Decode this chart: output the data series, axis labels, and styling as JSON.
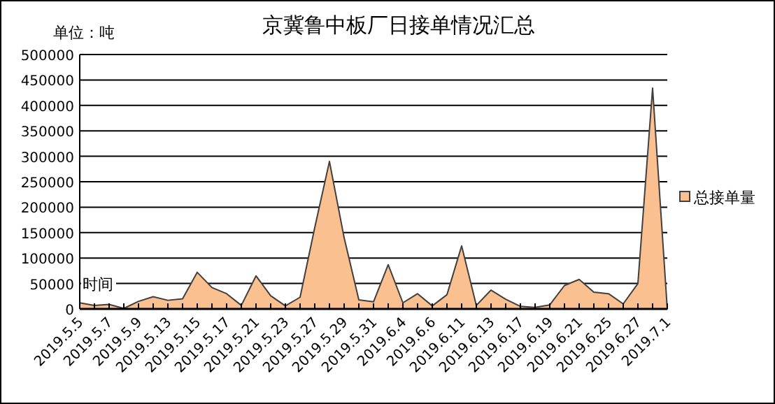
{
  "chart_data": {
    "type": "area",
    "title": "京冀鲁中板厂日接单情况汇总",
    "ylabel": "单位：吨",
    "xlabel": "时间",
    "categories": [
      "2019.5.5",
      null,
      "2019.5.7",
      null,
      "2019.5.9",
      null,
      "2019.5.13",
      null,
      "2019.5.15",
      null,
      "2019.5.17",
      null,
      "2019.5.21",
      null,
      "2019.5.23",
      null,
      "2019.5.27",
      null,
      "2019.5.29",
      null,
      "2019.5.31",
      null,
      "2019.6.4",
      null,
      "2019.6.6",
      null,
      "2019.6.11",
      null,
      "2019.6.13",
      null,
      "2019.6.17",
      null,
      "2019.6.19",
      null,
      "2019.6.21",
      null,
      "2019.6.25",
      null,
      "2019.6.27",
      null,
      "2019.7.1"
    ],
    "series": [
      {
        "name": "总接单量",
        "color": "#fac090",
        "values": [
          12000,
          7000,
          9000,
          1000,
          15000,
          24000,
          17000,
          20000,
          72000,
          42000,
          30000,
          7000,
          65000,
          26000,
          6000,
          23000,
          160000,
          290000,
          140000,
          18000,
          14000,
          87000,
          12000,
          30000,
          6000,
          28000,
          124000,
          7000,
          37000,
          19000,
          5000,
          3000,
          8000,
          46000,
          58000,
          33000,
          30000,
          10000,
          50000,
          434000,
          0
        ]
      }
    ],
    "ylim": [
      0,
      500000
    ],
    "yticks": [
      0,
      50000,
      100000,
      150000,
      200000,
      250000,
      300000,
      350000,
      400000,
      450000,
      500000
    ],
    "grid": "y",
    "legend": "right"
  }
}
